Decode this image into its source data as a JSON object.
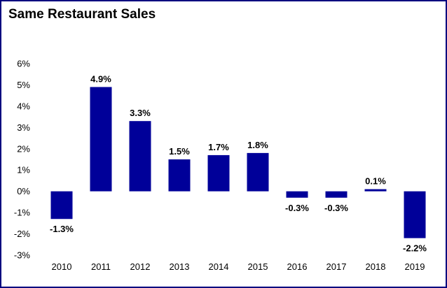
{
  "chart_data": {
    "type": "bar",
    "title": "Same Restaurant Sales",
    "xlabel": "",
    "ylabel": "",
    "categories": [
      "2010",
      "2011",
      "2012",
      "2013",
      "2014",
      "2015",
      "2016",
      "2017",
      "2018",
      "2019"
    ],
    "values": [
      -1.3,
      4.9,
      3.3,
      1.5,
      1.7,
      1.8,
      -0.3,
      -0.3,
      0.1,
      -2.2
    ],
    "data_labels": [
      "-1.3%",
      "4.9%",
      "3.3%",
      "1.5%",
      "1.7%",
      "1.8%",
      "-0.3%",
      "-0.3%",
      "0.1%",
      "-2.2%"
    ],
    "ylim": [
      -3,
      6
    ],
    "y_ticks": [
      6,
      5,
      4,
      3,
      2,
      1,
      0,
      -1,
      -2,
      -3
    ],
    "y_tick_labels": [
      "6%",
      "5%",
      "4%",
      "3%",
      "2%",
      "1%",
      "0%",
      "-1%",
      "-2%",
      "-3%"
    ],
    "grid": false,
    "legend": "none",
    "colors": {
      "bar": "#000099",
      "border": "#00007f",
      "axis": "#000000"
    }
  }
}
